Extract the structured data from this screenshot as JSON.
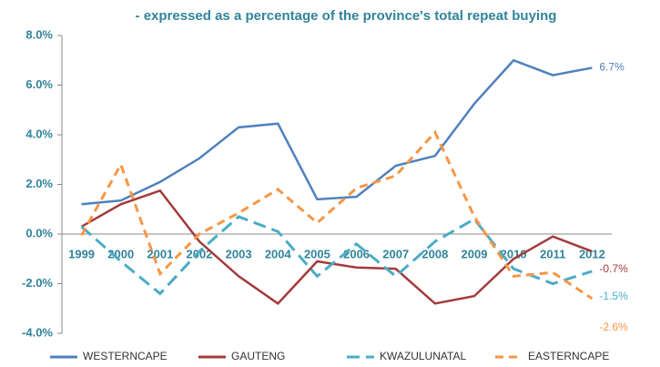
{
  "chart_data": {
    "type": "line",
    "subtitle": "- expressed as a percentage  of the province's total repeat buying",
    "categories": [
      "1999",
      "2000",
      "2001",
      "2002",
      "2003",
      "2004",
      "2005",
      "2006",
      "2007",
      "2008",
      "2009",
      "2010",
      "2011",
      "2012"
    ],
    "ylim": [
      -4,
      8
    ],
    "yticks": [
      {
        "value": -4,
        "label": "-4.0%"
      },
      {
        "value": -2,
        "label": "-2.0%"
      },
      {
        "value": 0,
        "label": "0.0%"
      },
      {
        "value": 2,
        "label": "2.0%"
      },
      {
        "value": 4,
        "label": "4.0%"
      },
      {
        "value": 6,
        "label": "6.0%"
      },
      {
        "value": 8,
        "label": "8.0%"
      }
    ],
    "legend": "bottom",
    "series": [
      {
        "name": "WESTERNCAPE",
        "color": "#4f81bd",
        "dash": "solid",
        "values": [
          1.2,
          1.35,
          2.1,
          3.05,
          4.3,
          4.45,
          1.4,
          1.5,
          2.75,
          3.15,
          5.25,
          7.0,
          6.4,
          6.7
        ],
        "value_labels": [
          null,
          null,
          null,
          null,
          null,
          null,
          null,
          null,
          null,
          null,
          null,
          null,
          null,
          "6.7%"
        ]
      },
      {
        "name": "GAUTENG",
        "color": "#a33b3b",
        "dash": "solid",
        "values": [
          0.3,
          1.2,
          1.75,
          -0.3,
          -1.7,
          -2.8,
          -1.1,
          -1.35,
          -1.4,
          -2.8,
          -2.5,
          -1.0,
          -0.1,
          -0.7
        ],
        "value_labels": [
          null,
          null,
          null,
          null,
          null,
          null,
          null,
          null,
          null,
          null,
          null,
          null,
          null,
          "-0.7%"
        ]
      },
      {
        "name": "KWAZULUNATAL",
        "color": "#4bacc6",
        "dash": "long",
        "values": [
          0.3,
          -1.1,
          -2.4,
          -0.7,
          0.7,
          0.1,
          -1.7,
          -0.4,
          -1.7,
          -0.3,
          0.6,
          -1.4,
          -2.0,
          -1.5
        ],
        "value_labels": [
          null,
          null,
          null,
          null,
          null,
          null,
          null,
          null,
          null,
          null,
          null,
          null,
          null,
          "-1.5%"
        ]
      },
      {
        "name": "EASTERNCAPE",
        "color": "#f79646",
        "dash": "short",
        "values": [
          -0.05,
          2.8,
          -1.6,
          0.0,
          0.85,
          1.8,
          0.45,
          1.85,
          2.35,
          4.1,
          0.7,
          -1.7,
          -1.55,
          -2.6
        ],
        "value_labels": [
          null,
          null,
          null,
          null,
          null,
          null,
          null,
          null,
          null,
          null,
          null,
          null,
          null,
          "-2.6%"
        ]
      }
    ]
  }
}
